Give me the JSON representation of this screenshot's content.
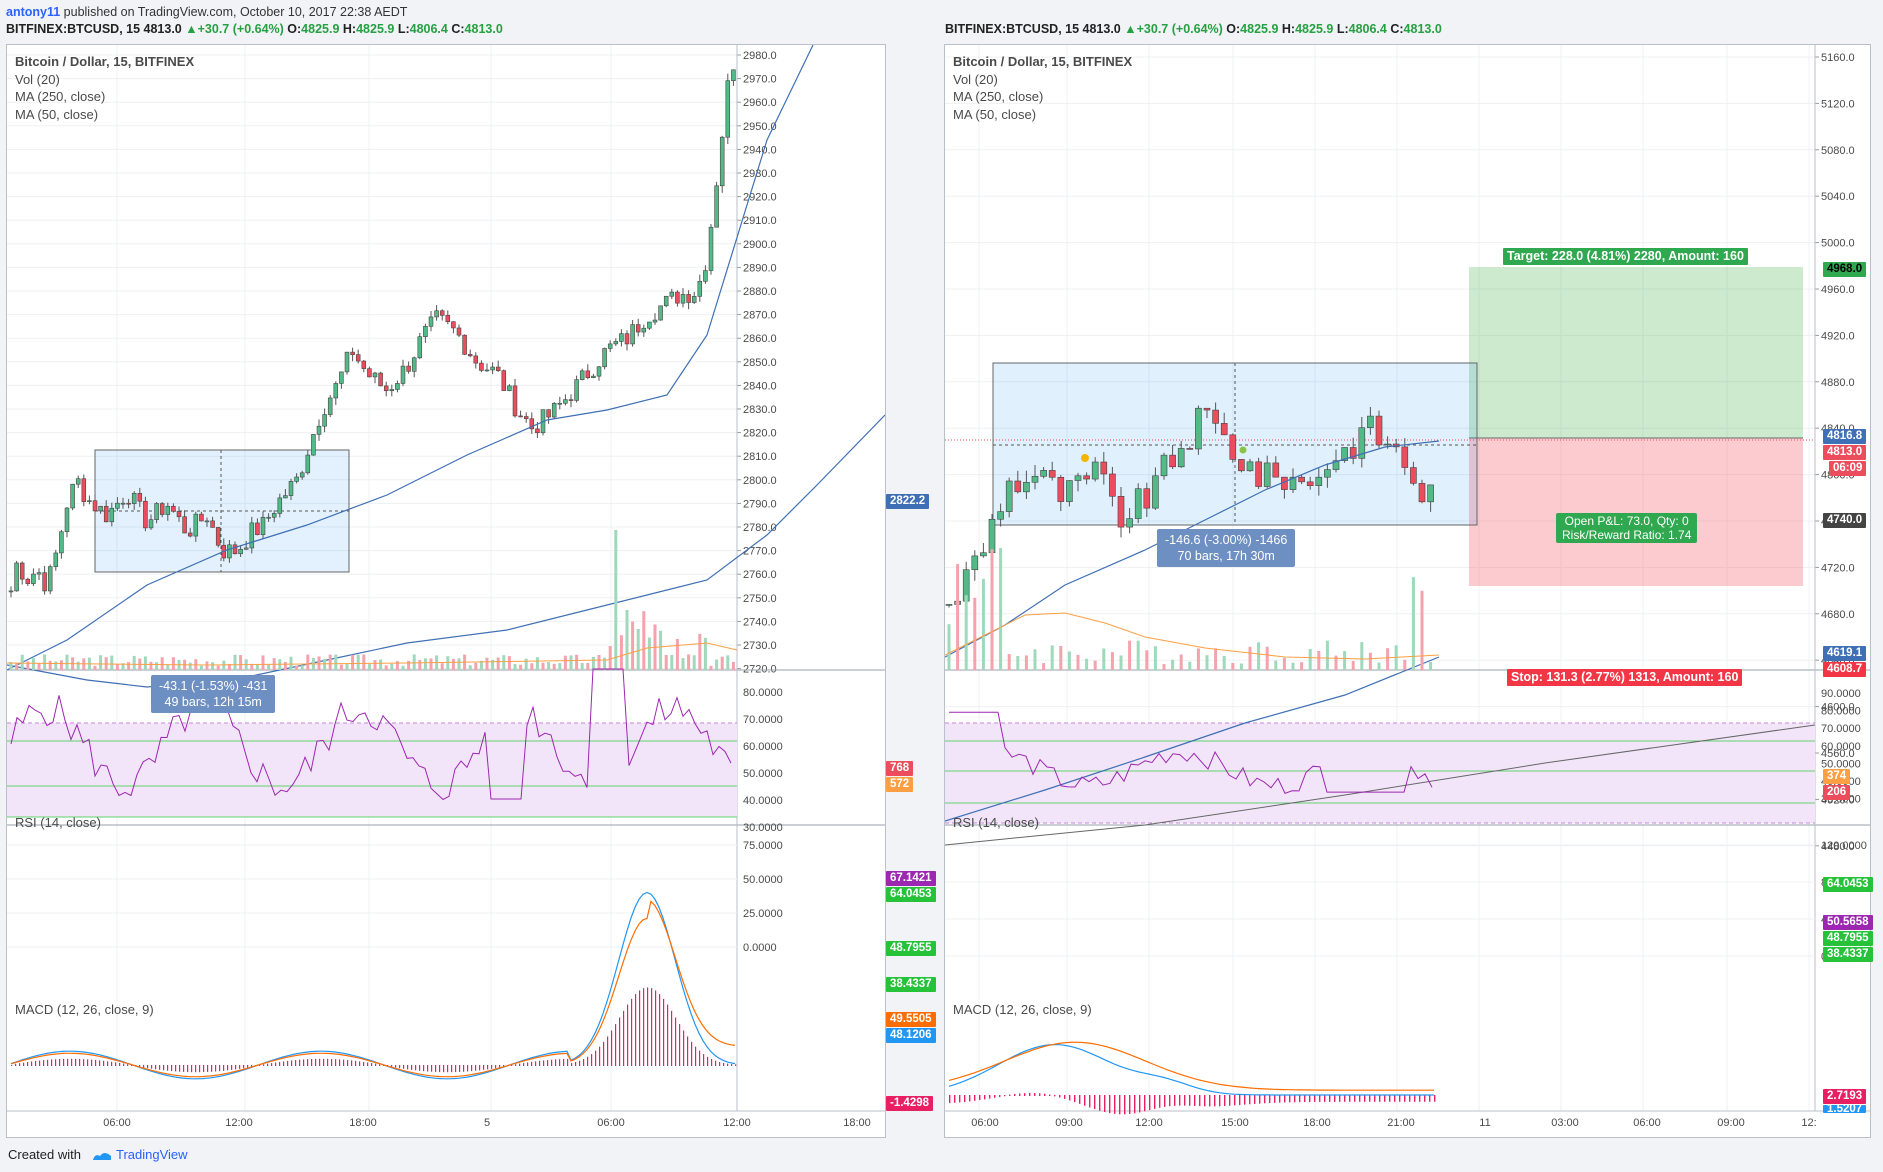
{
  "publish_line": {
    "author": "antony11",
    "rest": "published on TradingView.com, October 10, 2017 22:38 AEDT"
  },
  "symbol_line": {
    "symbol": "BITFINEX:BTCUSD, 15",
    "last": "4813.0",
    "change": "+30.7 (+0.64%)",
    "o_label": "O:",
    "o": "4825.9",
    "h_label": "H:",
    "h": "4825.9",
    "l_label": "L:",
    "l": "4806.4",
    "c_label": "C:",
    "c": "4813.0"
  },
  "legend": {
    "title": "Bitcoin / Dollar, 15, BITFINEX",
    "vol": "Vol (20)",
    "ma250": "MA (250, close)",
    "ma50": "MA (50, close)"
  },
  "rsi_label": "RSI (14, close)",
  "macd_label": "MACD (12, 26, close, 9)",
  "left": {
    "price_ticks": [
      "2980.0",
      "2970.0",
      "2960.0",
      "2950.0",
      "2940.0",
      "2930.0",
      "2920.0",
      "2910.0",
      "2900.0",
      "2890.0",
      "2880.0",
      "2870.0",
      "2860.0",
      "2850.0",
      "2840.0",
      "2830.0",
      "2820.0",
      "2810.0",
      "2800.0",
      "2790.0",
      "2780.0",
      "2770.0",
      "2760.0",
      "2750.0",
      "2740.0",
      "2730.0",
      "2720.0"
    ],
    "rsi_ticks": [
      "80.0000",
      "70.0000",
      "60.0000",
      "50.0000",
      "40.0000",
      "30.0000"
    ],
    "macd_ticks": [
      "75.0000",
      "50.0000",
      "25.0000",
      "0.0000"
    ],
    "time_ticks": [
      "06:00",
      "12:00",
      "18:00",
      "5",
      "06:00",
      "12:00",
      "18:00"
    ],
    "tags": {
      "ma": "2822.2",
      "vol1": "768",
      "vol2": "572",
      "rsi1": "67.1421",
      "rsi2": "64.0453",
      "rsi3": "48.7955",
      "rsi4": "38.4337",
      "macd1": "49.5505",
      "macd2": "48.1206",
      "macd3": "-1.4298"
    },
    "measure": {
      "line1": "-43.1 (-1.53%) -431",
      "line2": "49 bars, 12h 15m"
    }
  },
  "right": {
    "price_ticks": [
      "5160.0",
      "5120.0",
      "5080.0",
      "5040.0",
      "5000.0",
      "4960.0",
      "4920.0",
      "4880.0",
      "4840.0",
      "4800.0",
      "4760.0",
      "4720.0",
      "4680.0",
      "4640.0",
      "4600.0",
      "4560.0",
      "4520.0",
      "4480.0"
    ],
    "rsi_ticks": [
      "90.0000",
      "80.0000",
      "70.0000",
      "60.0000",
      "50.0000",
      "40.0000",
      "30.0000"
    ],
    "macd_ticks": [
      "120.0000",
      "80.0000",
      "40.0000",
      "0.0000"
    ],
    "time_ticks": [
      "06:00",
      "09:00",
      "12:00",
      "15:00",
      "18:00",
      "21:00",
      "11",
      "03:00",
      "06:00",
      "09:00",
      "12:"
    ],
    "tags": {
      "target": "4968.0",
      "p1": "4816.8",
      "p2": "4813.0",
      "countdown": "06:09",
      "entry": "4740.0",
      "ma": "4619.1",
      "stop": "4608.7",
      "vol1": "374",
      "vol2": "206",
      "rsi1": "64.0453",
      "rsi2": "50.5658",
      "rsi3": "48.7955",
      "rsi4": "38.4337",
      "macd1": "2.7193",
      "macd2": "1.5207"
    },
    "target_label": "Target: 228.0 (4.81%) 2280, Amount: 160",
    "stop_label": "Stop: 131.3 (2.77%) 1313, Amount: 160",
    "pnl1": "Open P&L: 73.0, Qty: 0",
    "pnl2": "Risk/Reward Ratio: 1.74",
    "measure": {
      "line1": "-146.6 (-3.00%) -1466",
      "line2": "70 bars, 17h 30m"
    }
  },
  "footer": {
    "created": "Created with",
    "brand": "TradingView"
  },
  "colors": {
    "up": "#53b987",
    "down": "#eb4d5c",
    "ma": "#3f6fb5",
    "rsi": "#9c27b0",
    "macd": "#2196f3",
    "signal": "#ff6d00",
    "hist": "#e91e63",
    "target": "#2fa84f",
    "stop": "#f23645",
    "rsi_band": "#f3e5f9"
  }
}
